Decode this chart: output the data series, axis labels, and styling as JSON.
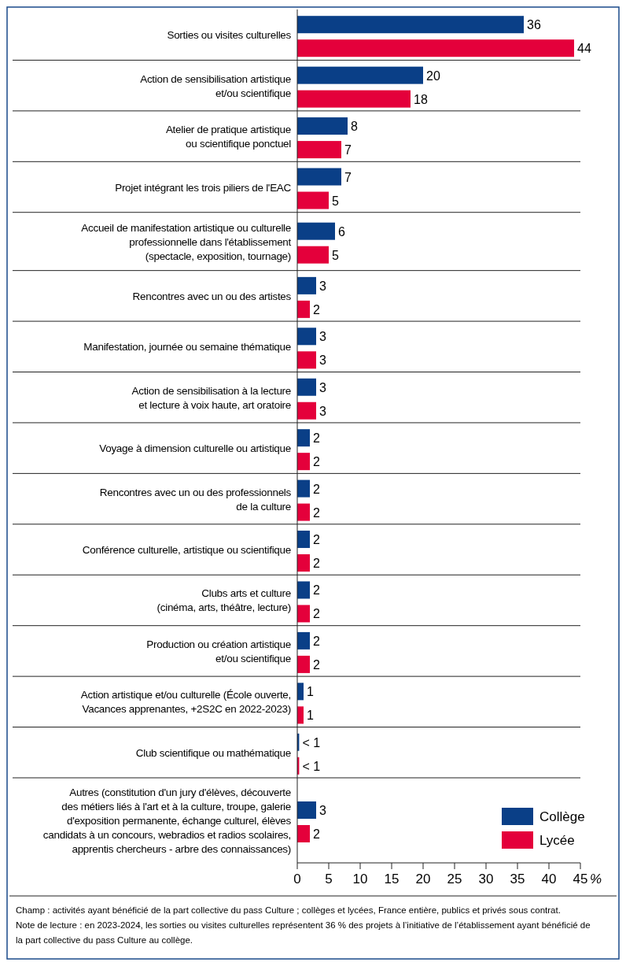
{
  "chart_data": {
    "type": "bar",
    "orientation": "horizontal",
    "categories": [
      "Sorties ou visites culturelles",
      "Action de sensibilisation artistique\net/ou scientifique",
      "Atelier de pratique artistique\nou scientifique ponctuel",
      "Projet intégrant les trois piliers de l'EAC",
      "Accueil de manifestation artistique ou culturelle\nprofessionnelle dans l'établissement\n(spectacle, exposition, tournage)",
      "Rencontres avec un ou des artistes",
      "Manifestation, journée ou semaine thématique",
      "Action de sensibilisation à la lecture\net lecture à voix haute, art oratoire",
      "Voyage à dimension culturelle ou artistique",
      "Rencontres avec un ou des professionnels\nde la culture",
      "Conférence culturelle, artistique ou scientifique",
      "Clubs arts et culture\n(cinéma, arts, théâtre, lecture)",
      "Production ou création artistique\net/ou scientifique",
      "Action artistique et/ou culturelle (École ouverte,\nVacances apprenantes, +2S2C en 2022-2023)",
      "Club scientifique ou mathématique",
      "Autres (constitution d'un jury d'élèves, découverte\ndes métiers liés à l'art et à la culture, troupe, galerie\nd'exposition permanente, échange culturel, élèves\ncandidats à un concours, webradios et radios scolaires,\napprentis chercheurs - arbre des connaissances)"
    ],
    "series": [
      {
        "name": "Collège",
        "color": "#0a3f87",
        "values": [
          36,
          20,
          8,
          7,
          6,
          3,
          3,
          3,
          2,
          2,
          2,
          2,
          2,
          1,
          0.3,
          3
        ],
        "value_labels": [
          "36",
          "20",
          "8",
          "7",
          "6",
          "3",
          "3",
          "3",
          "2",
          "2",
          "2",
          "2",
          "2",
          "1",
          "< 1",
          "3"
        ]
      },
      {
        "name": "Lycée",
        "color": "#e4003b",
        "values": [
          44,
          18,
          7,
          5,
          5,
          2,
          3,
          3,
          2,
          2,
          2,
          2,
          2,
          1,
          0.3,
          2
        ],
        "value_labels": [
          "44",
          "18",
          "7",
          "5",
          "5",
          "2",
          "3",
          "3",
          "2",
          "2",
          "2",
          "2",
          "2",
          "1",
          "< 1",
          "2"
        ]
      }
    ],
    "xlim": [
      0,
      45
    ],
    "xticks": [
      0,
      5,
      10,
      15,
      20,
      25,
      30,
      35,
      40,
      45
    ],
    "xlabel": "%",
    "legend": "bottom right",
    "annotations": [
      "Champ : activités ayant bénéficié de la part collective du pass Culture ; collèges et lycées, France entière, publics et privés sous contrat.",
      "Note de lecture : en 2023-2024, les sorties ou visites culturelles représentent 36 % des projets à l’initiative de l’établissement ayant bénéficié de la part collective du pass Culture au collège."
    ]
  }
}
